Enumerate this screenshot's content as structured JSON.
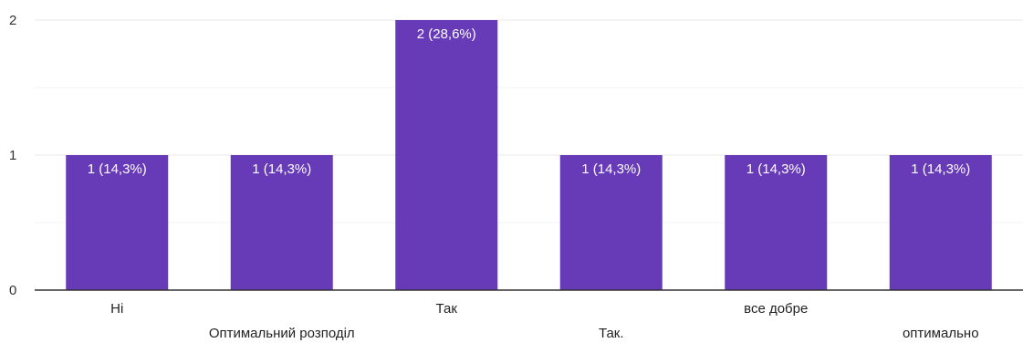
{
  "chart_data": {
    "type": "bar",
    "categories": [
      "Ні",
      "Оптимальний розподіл",
      "Так",
      "Так.",
      "все добре",
      "оптимально"
    ],
    "values": [
      1,
      1,
      2,
      1,
      1,
      1
    ],
    "data_labels": [
      "1 (14,3%)",
      "1 (14,3%)",
      "2 (28,6%)",
      "1 (14,3%)",
      "1 (14,3%)",
      "1 (14,3%)"
    ],
    "y_ticks": [
      "0",
      "1",
      "2"
    ],
    "ylim": [
      0,
      2
    ],
    "grid": true,
    "title": "",
    "xlabel": "",
    "ylabel": ""
  },
  "colors": {
    "bar": "#673ab7",
    "grid": "#e8e8e8",
    "axis": "#333333"
  }
}
